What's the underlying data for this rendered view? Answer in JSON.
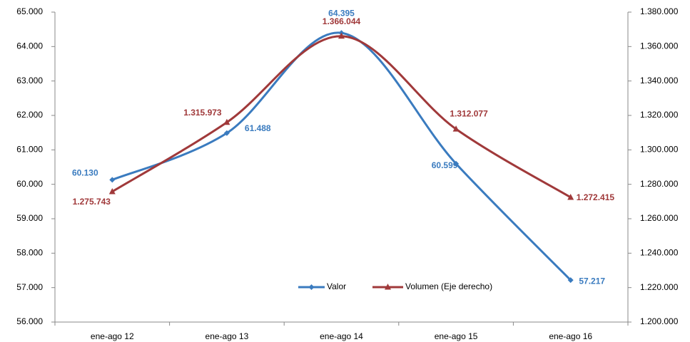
{
  "chart_data": {
    "type": "line",
    "categories": [
      "ene-ago 12",
      "ene-ago 13",
      "ene-ago 14",
      "ene-ago 15",
      "ene-ago 16"
    ],
    "series": [
      {
        "name": "Valor",
        "color": "#3a7bbf",
        "values": [
          60130,
          61488,
          64395,
          60599,
          57217
        ],
        "value_labels": [
          "60.130",
          "61.488",
          "64.395",
          "60.599",
          "57.217"
        ]
      },
      {
        "name": "Volumen (Eje derecho)",
        "color": "#a0393a",
        "axis": "y2",
        "values": [
          1275743,
          1315973,
          1366044,
          1312077,
          1272415
        ],
        "value_labels": [
          "1.275.743",
          "1.315.973",
          "1.366.044",
          "1.312.077",
          "1.272.415"
        ]
      }
    ],
    "ylim": [
      56000,
      65000
    ],
    "yticks": [
      {
        "value": 56000,
        "label": "56.000"
      },
      {
        "value": 57000,
        "label": "57.000"
      },
      {
        "value": 58000,
        "label": "58.000"
      },
      {
        "value": 59000,
        "label": "59.000"
      },
      {
        "value": 60000,
        "label": "60.000"
      },
      {
        "value": 61000,
        "label": "61.000"
      },
      {
        "value": 62000,
        "label": "62.000"
      },
      {
        "value": 63000,
        "label": "63.000"
      },
      {
        "value": 64000,
        "label": "64.000"
      },
      {
        "value": 65000,
        "label": "65.000"
      }
    ],
    "y2lim": [
      1200000,
      1380000
    ],
    "y2ticks": [
      {
        "value": 1200000,
        "label": "1.200.000"
      },
      {
        "value": 1220000,
        "label": "1.220.000"
      },
      {
        "value": 1240000,
        "label": "1.240.000"
      },
      {
        "value": 1260000,
        "label": "1.260.000"
      },
      {
        "value": 1280000,
        "label": "1.280.000"
      },
      {
        "value": 1300000,
        "label": "1.300.000"
      },
      {
        "value": 1320000,
        "label": "1.320.000"
      },
      {
        "value": 1340000,
        "label": "1.340.000"
      },
      {
        "value": 1360000,
        "label": "1.360.000"
      },
      {
        "value": 1380000,
        "label": "1.380.000"
      }
    ],
    "grid": false,
    "legend": "bottom"
  }
}
